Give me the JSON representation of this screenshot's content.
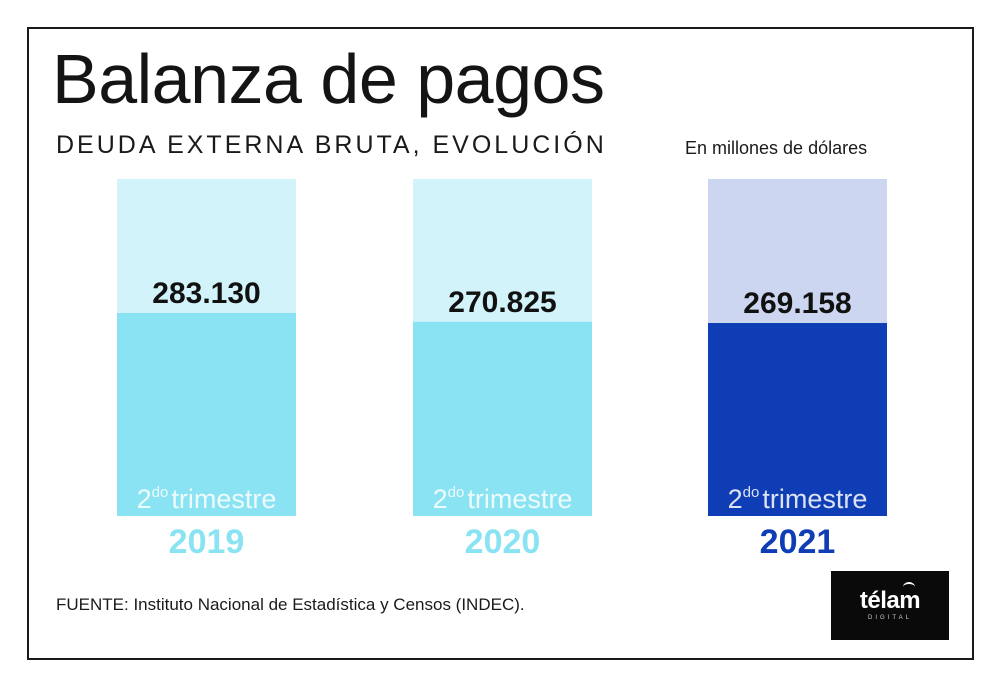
{
  "title": "Balanza de pagos",
  "subtitle": "DEUDA EXTERNA BRUTA, EVOLUCIÓN",
  "unit_note": "En millones de dólares",
  "source": "FUENTE: Instituto Nacional de Estadística y Censos (INDEC).",
  "logo": {
    "word": "télam",
    "sub": "DIGITAL"
  },
  "chart_data": {
    "type": "bar",
    "title": "Balanza de pagos",
    "subtitle": "DEUDA EXTERNA BRUTA, EVOLUCIÓN",
    "ylabel": "En millones de dólares",
    "categories": [
      "2019",
      "2020",
      "2021"
    ],
    "values": [
      283130,
      270825,
      269158
    ],
    "value_labels": [
      "283.130",
      "270.825",
      "269.158"
    ],
    "period_label": {
      "main": "2",
      "sup": "do",
      "rest": "trimestre"
    },
    "grid": false,
    "legend": "none",
    "colors": {
      "bar_fill": [
        "#8ae3f2",
        "#8ae3f2",
        "#0f3db5"
      ],
      "bar_background": [
        "#d2f3fa",
        "#d2f3fa",
        "#ccd6f0"
      ],
      "year_text": [
        "#8ae3f2",
        "#8ae3f2",
        "#0f3db5"
      ]
    }
  }
}
